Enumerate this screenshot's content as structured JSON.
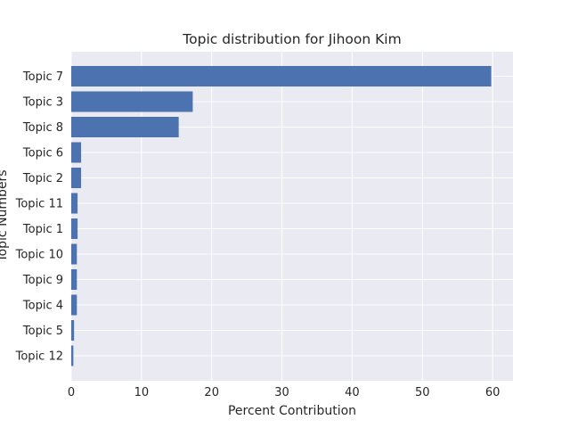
{
  "chart_data": {
    "type": "bar",
    "orientation": "horizontal",
    "title": "Topic distribution for Jihoon Kim",
    "xlabel": "Percent Contribution",
    "ylabel": "Topic Numbers",
    "categories": [
      "Topic 7",
      "Topic 3",
      "Topic 8",
      "Topic 6",
      "Topic 2",
      "Topic 11",
      "Topic 1",
      "Topic 10",
      "Topic 9",
      "Topic 4",
      "Topic 5",
      "Topic 12"
    ],
    "values": [
      59.8,
      17.3,
      15.3,
      1.4,
      1.4,
      0.9,
      0.9,
      0.8,
      0.8,
      0.8,
      0.4,
      0.3
    ],
    "xlim": [
      0,
      62.9
    ],
    "xticks": [
      0,
      10,
      20,
      30,
      40,
      50,
      60
    ],
    "grid": true,
    "colors": {
      "bar": "#4c72b0",
      "plot_background": "#eaeaf2",
      "grid": "#ffffff",
      "text": "#262626"
    }
  }
}
